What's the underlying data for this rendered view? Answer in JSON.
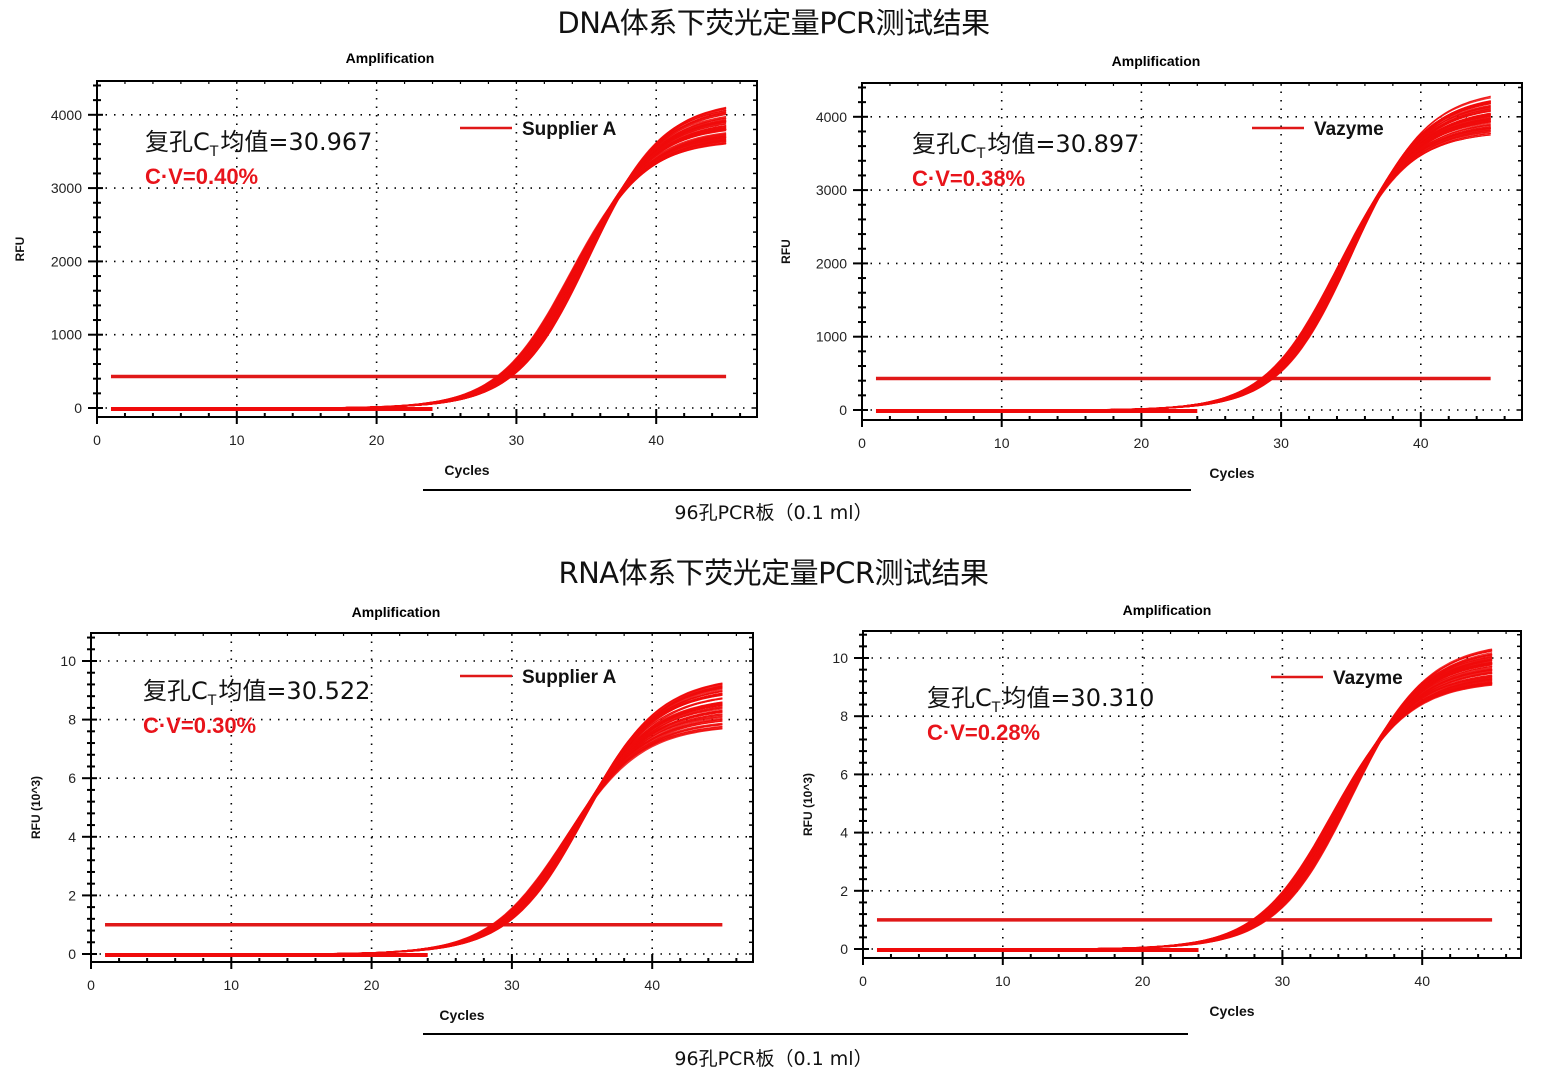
{
  "sections": [
    {
      "title": "DNA体系下荧光定量PCR测试结果",
      "caption": "96孔PCR板（0.1 ml）"
    },
    {
      "title": "RNA体系下荧光定量PCR测试结果",
      "caption": "96孔PCR板（0.1 ml）"
    }
  ],
  "colors": {
    "curve": "#f00a0a",
    "threshold": "#e01818",
    "cv_text": "#e8141b",
    "grid": "#000000"
  },
  "chart_data": [
    {
      "type": "line",
      "section": "DNA",
      "title": "Amplification",
      "xlabel": "Cycles",
      "ylabel": "RFU",
      "xlim": [
        0,
        47
      ],
      "ylim": [
        -100,
        4500
      ],
      "xticks": [
        0,
        10,
        20,
        30,
        40
      ],
      "yticks": [
        0,
        1000,
        2000,
        3000,
        4000
      ],
      "grid": true,
      "legend": "Supplier A",
      "ct_label": "复孔C",
      "ct_sub": "T",
      "ct_value_label": "均值=30.967",
      "cv_label": "C·V=0.40%",
      "ct_mean": 30.967,
      "cv_percent": 0.4,
      "threshold": 430,
      "cycle_range": [
        1,
        45
      ],
      "curve_plateau_range": [
        3650,
        4200
      ],
      "curve_midpoint": 34.6,
      "curve_slope": 2.6,
      "num_wells": 96
    },
    {
      "type": "line",
      "section": "DNA",
      "title": "Amplification",
      "xlabel": "Cycles",
      "ylabel": "RFU",
      "xlim": [
        0,
        47
      ],
      "ylim": [
        -100,
        4500
      ],
      "xticks": [
        0,
        10,
        20,
        30,
        40
      ],
      "yticks": [
        0,
        1000,
        2000,
        3000,
        4000
      ],
      "grid": true,
      "legend": "Vazyme",
      "ct_label": "复孔C",
      "ct_sub": "T",
      "ct_value_label": "均值=30.897",
      "cv_label": "C·V=0.38%",
      "ct_mean": 30.897,
      "cv_percent": 0.38,
      "threshold": 430,
      "cycle_range": [
        1,
        45
      ],
      "curve_plateau_range": [
        3800,
        4400
      ],
      "curve_midpoint": 34.6,
      "curve_slope": 2.6,
      "num_wells": 96
    },
    {
      "type": "line",
      "section": "RNA",
      "title": "Amplification",
      "xlabel": "Cycles",
      "ylabel": "RFU (10^3)",
      "xlim": [
        0,
        47
      ],
      "ylim": [
        -0.3,
        11
      ],
      "xticks": [
        0,
        10,
        20,
        30,
        40
      ],
      "yticks": [
        0,
        2,
        4,
        6,
        8,
        10
      ],
      "grid": true,
      "legend": "Supplier A",
      "ct_label": "复孔C",
      "ct_sub": "T",
      "ct_value_label": "均值=30.522",
      "cv_label": "C·V=0.30%",
      "ct_mean": 30.522,
      "cv_percent": 0.3,
      "threshold": 1.0,
      "cycle_range": [
        1,
        45
      ],
      "curve_plateau_range": [
        7.8,
        9.5
      ],
      "curve_midpoint": 34.5,
      "curve_slope": 2.7,
      "num_wells": 96
    },
    {
      "type": "line",
      "section": "RNA",
      "title": "Amplification",
      "xlabel": "Cycles",
      "ylabel": "RFU (10^3)",
      "xlim": [
        0,
        47
      ],
      "ylim": [
        -0.3,
        11
      ],
      "xticks": [
        0,
        10,
        20,
        30,
        40
      ],
      "yticks": [
        0,
        2,
        4,
        6,
        8,
        10
      ],
      "grid": true,
      "legend": "Vazyme",
      "ct_label": "复孔C",
      "ct_sub": "T",
      "ct_value_label": "均值=30.310",
      "cv_label": "C·V=0.28%",
      "ct_mean": 30.31,
      "cv_percent": 0.28,
      "threshold": 1.0,
      "cycle_range": [
        1,
        45
      ],
      "curve_plateau_range": [
        9.2,
        10.6
      ],
      "curve_midpoint": 34.3,
      "curve_slope": 2.7,
      "num_wells": 96
    }
  ]
}
